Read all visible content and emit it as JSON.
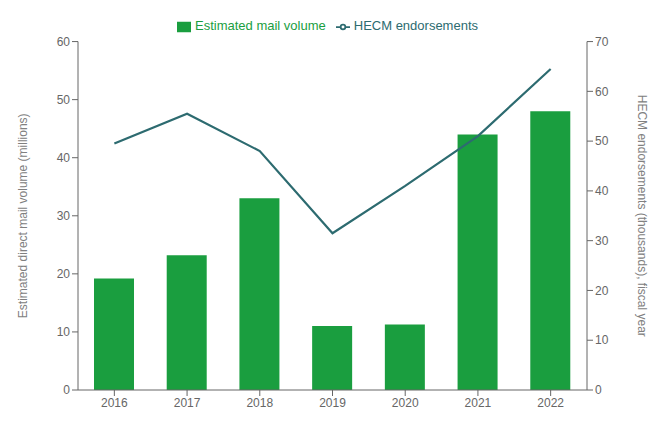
{
  "chart_data": {
    "type": "bar",
    "categories": [
      "2016",
      "2017",
      "2018",
      "2019",
      "2020",
      "2021",
      "2022"
    ],
    "series": [
      {
        "name": "Estimated mail volume",
        "type": "bar",
        "color": "#1a9e3f",
        "values": [
          19.2,
          23.2,
          33.0,
          11.0,
          11.3,
          44.0,
          48.0
        ]
      },
      {
        "name": "HECM endorsements",
        "type": "line",
        "color": "#2d6b70",
        "axis": "y2",
        "values": [
          49.5,
          55.5,
          48.0,
          31.5,
          41.0,
          51.0,
          64.5
        ]
      }
    ],
    "ylabel": "Estimated direct mail volume (millions)",
    "y2label": "HECM endorsements (thousands), fiscal year",
    "ylim": [
      0,
      60
    ],
    "yticks": [
      0,
      10,
      20,
      30,
      40,
      50,
      60
    ],
    "y2lim": [
      0,
      70
    ],
    "y2ticks": [
      0,
      10,
      20,
      30,
      40,
      50,
      60,
      70
    ],
    "grid": false,
    "legend": "top"
  }
}
